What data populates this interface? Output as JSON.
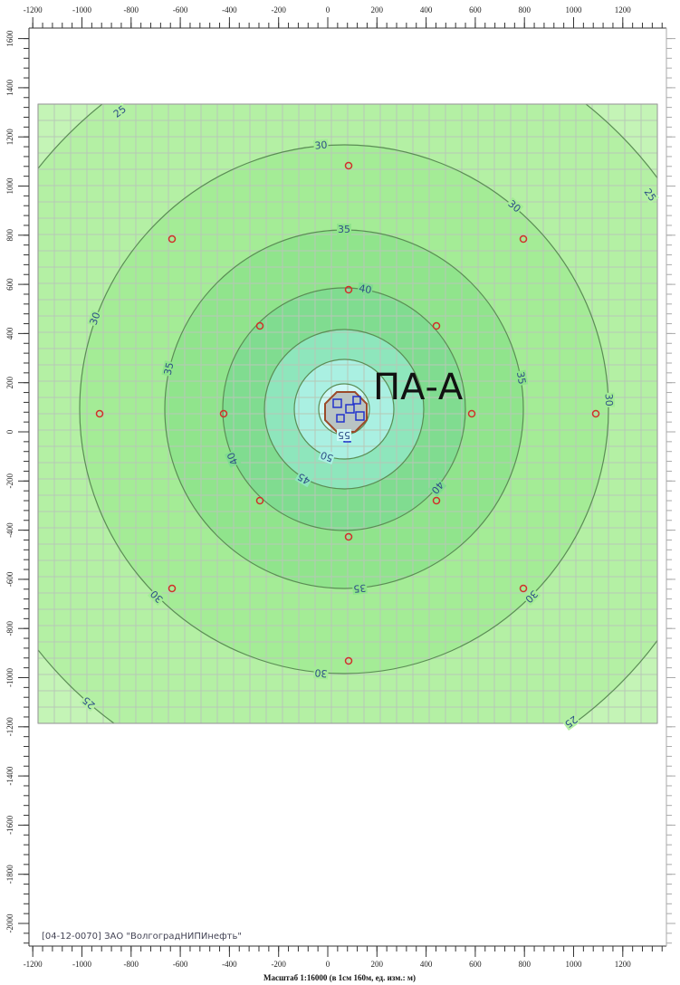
{
  "rulers": {
    "x_ticks": [
      -1200,
      -1000,
      -800,
      -600,
      -400,
      -200,
      0,
      200,
      400,
      600,
      800,
      1000,
      1200
    ],
    "y_ticks": [
      1600,
      1400,
      1200,
      1000,
      800,
      600,
      400,
      200,
      0,
      -200,
      -400,
      -600,
      -800,
      -1000,
      -1200,
      -1400,
      -1600,
      -1800,
      -2000
    ]
  },
  "contours": [
    {
      "level": 25
    },
    {
      "level": 30
    },
    {
      "level": 35
    },
    {
      "level": 40
    },
    {
      "level": 45
    },
    {
      "level": 50
    },
    {
      "level": 55
    }
  ],
  "source_label": "ПА-А",
  "footer": "[04-12-0070] ЗАО \"ВолгоградНИПИнефть\"",
  "scale_text": "Масштаб 1:16000 (в 1см 160м, ед. изм.: м)"
}
